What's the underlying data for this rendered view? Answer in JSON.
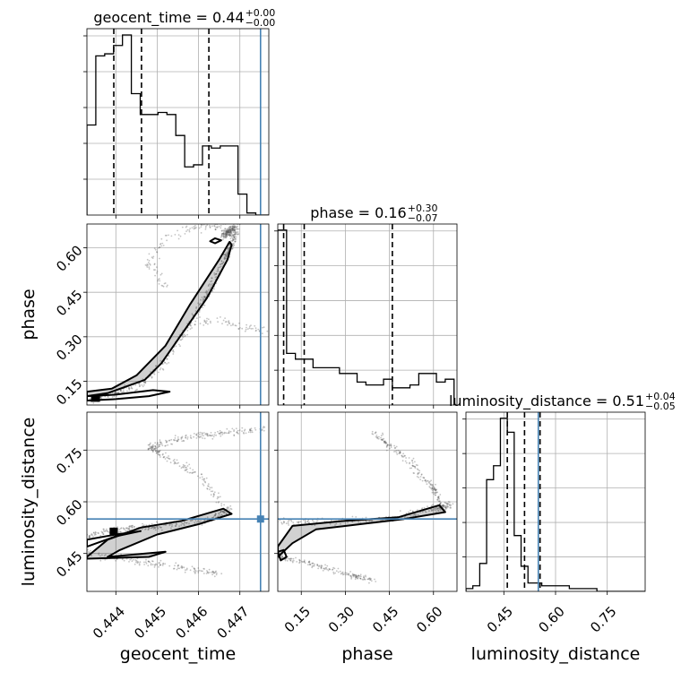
{
  "chart_data": {
    "type": "corner",
    "parameters": [
      {
        "name": "geocent_time",
        "axis_label": "geocent_time",
        "title": {
          "prefix": "geocent_time = 0.44",
          "upper": "+0.00",
          "lower": "−0.00"
        },
        "range": [
          0.4433,
          0.4477
        ],
        "ticks": [
          {
            "value": 0.444,
            "label": "0.444"
          },
          {
            "value": 0.445,
            "label": "0.445"
          },
          {
            "value": 0.446,
            "label": "0.446"
          },
          {
            "value": 0.447,
            "label": "0.447"
          }
        ],
        "truth": 0.4475,
        "quantiles": [
          0.44395,
          0.44462,
          0.44625
        ],
        "hist": {
          "start": 0.4433,
          "width": 0.000215,
          "counts": [
            43,
            76,
            77,
            81,
            86,
            58,
            48,
            48,
            49,
            48,
            38,
            23,
            24,
            33,
            32,
            33,
            33,
            10,
            1,
            0,
            0
          ]
        }
      },
      {
        "name": "phase",
        "axis_label": "phase",
        "title": {
          "prefix": "phase = 0.16",
          "upper": "+0.30",
          "lower": "−0.07"
        },
        "range": [
          0.07,
          0.68
        ],
        "ticks": [
          {
            "value": 0.15,
            "label": "0.15"
          },
          {
            "value": 0.3,
            "label": "0.30"
          },
          {
            "value": 0.45,
            "label": "0.45"
          },
          {
            "value": 0.6,
            "label": "0.60"
          }
        ],
        "truth": null,
        "quantiles": [
          0.09,
          0.16,
          0.46
        ],
        "hist": {
          "start": 0.07,
          "width": 0.03,
          "counts": [
            61,
            18,
            16,
            16,
            13,
            13,
            13,
            11,
            11,
            8,
            7,
            7,
            9,
            6,
            6,
            7,
            11,
            11,
            8,
            9
          ]
        }
      },
      {
        "name": "luminosity_distance",
        "axis_label": "luminosity_distance",
        "title": {
          "prefix": "luminosity_distance = 0.51",
          "upper": "+0.04",
          "lower": "−0.05"
        },
        "range": [
          0.34,
          0.86
        ],
        "ticks": [
          {
            "value": 0.45,
            "label": "0.45"
          },
          {
            "value": 0.6,
            "label": "0.60"
          },
          {
            "value": 0.75,
            "label": "0.75"
          }
        ],
        "truth": 0.55,
        "quantiles": [
          0.46,
          0.51,
          0.555
        ],
        "hist": {
          "start": 0.34,
          "width": 0.02,
          "counts": [
            1,
            2,
            10,
            40,
            45,
            62,
            57,
            20,
            9,
            3,
            3,
            2,
            2,
            2,
            2,
            1,
            1,
            1,
            1,
            0,
            0,
            0,
            0,
            0,
            0,
            0
          ]
        }
      }
    ],
    "colors": {
      "truth": "#4682b4",
      "contour": "#000000",
      "scatter": "#555555"
    },
    "grid": true
  }
}
